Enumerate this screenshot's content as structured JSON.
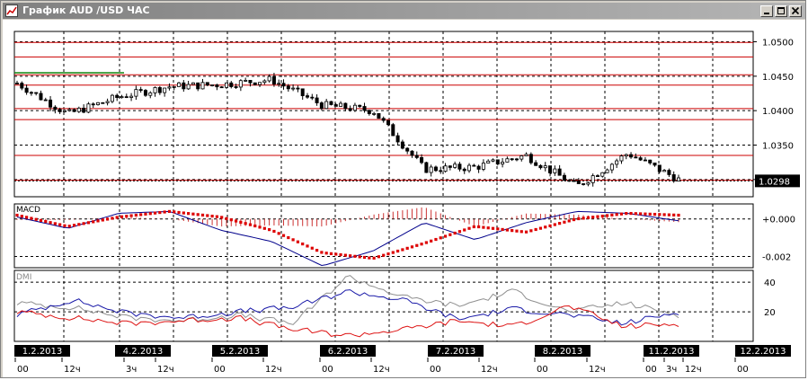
{
  "window": {
    "title": "График AUD /USD ЧАС",
    "buttons": [
      "minimize",
      "maximize",
      "close"
    ]
  },
  "chart_data": {
    "type": "candlestick",
    "symbol": "AUD /USD",
    "timeframe": "ЧАС",
    "price_axis": {
      "ticks": [
        "1.0500",
        "1.0450",
        "1.0400",
        "1.0350",
        "1.0300"
      ],
      "tick_values": [
        1.05,
        1.045,
        1.04,
        1.035,
        1.03
      ],
      "ylim": [
        1.0275,
        1.0515
      ]
    },
    "current_price": "1.0298",
    "horizontal_levels": [
      1.0499,
      1.0478,
      1.0452,
      1.0437,
      1.0403,
      1.0387,
      1.0335,
      1.0299
    ],
    "price_series": {
      "name": "AUD /USD",
      "x_dates": [
        "1.2.2013 00",
        "1.2.2013 12",
        "4.2.2013 03",
        "4.2.2013 12",
        "5.2.2013 00",
        "5.2.2013 12",
        "6.2.2013 00",
        "6.2.2013 12",
        "7.2.2013 00",
        "7.2.2013 12",
        "8.2.2013 00",
        "8.2.2013 12",
        "11.2.2013 00",
        "11.2.2013 03"
      ],
      "closes": [
        1.044,
        1.0395,
        1.042,
        1.0435,
        1.0438,
        1.0445,
        1.0408,
        1.04,
        1.0315,
        1.0318,
        1.0335,
        1.029,
        1.0338,
        1.03
      ]
    },
    "macd": {
      "label": "MACD",
      "ticks": [
        "+0.000",
        "-0.002"
      ],
      "tick_values": [
        0.0,
        -0.002
      ],
      "ylim": [
        -0.0026,
        0.0008
      ],
      "line_points": [
        0.0001,
        -0.0005,
        0.0003,
        0.0004,
        -0.0006,
        -0.0012,
        -0.0025,
        -0.0017,
        -0.0002,
        -0.0011,
        -0.0002,
        0.0004,
        0.0003,
        -0.0001
      ],
      "signal_points": [
        0.0002,
        -0.0004,
        0.0001,
        0.0004,
        0.0001,
        -0.0006,
        -0.0018,
        -0.0021,
        -0.0013,
        -0.0004,
        -0.0007,
        0.0,
        0.0003,
        0.0002
      ]
    },
    "dmi": {
      "label": "DMI",
      "ticks": [
        "40",
        "20"
      ],
      "tick_values": [
        40,
        20
      ],
      "ylim": [
        0,
        48
      ],
      "adx": [
        26,
        23,
        16,
        14,
        18,
        12,
        44,
        30,
        24,
        34,
        20,
        26,
        18
      ],
      "plus_di": [
        18,
        28,
        19,
        16,
        20,
        23,
        34,
        28,
        15,
        22,
        18,
        12,
        20
      ],
      "minus_di": [
        20,
        16,
        12,
        14,
        16,
        8,
        4,
        8,
        14,
        10,
        24,
        10,
        12
      ]
    },
    "time_axis": {
      "date_labels": [
        "1.2.2013",
        "4.2.2013",
        "5.2.2013",
        "6.2.2013",
        "7.2.2013",
        "8.2.2013",
        "11.2.2013",
        "12.2.2013"
      ],
      "hour_labels": [
        "00",
        "12ч",
        "3ч",
        "12ч",
        "00",
        "12ч",
        "00",
        "12ч",
        "00",
        "12ч",
        "00",
        "12ч",
        "00",
        "3ч",
        "12ч",
        "00"
      ]
    },
    "grid": true,
    "colors": {
      "candle_up": "#ffffff",
      "candle_down": "#000000",
      "levels": "#cc0000",
      "macd_line": "#00008b",
      "macd_signal": "#dd0000",
      "macd_hist": "#cc3333",
      "adx": "#909090",
      "plus_di": "#1a1aa8",
      "minus_di": "#dd1111",
      "grid": "#000000",
      "title_bar": "#808080"
    }
  }
}
